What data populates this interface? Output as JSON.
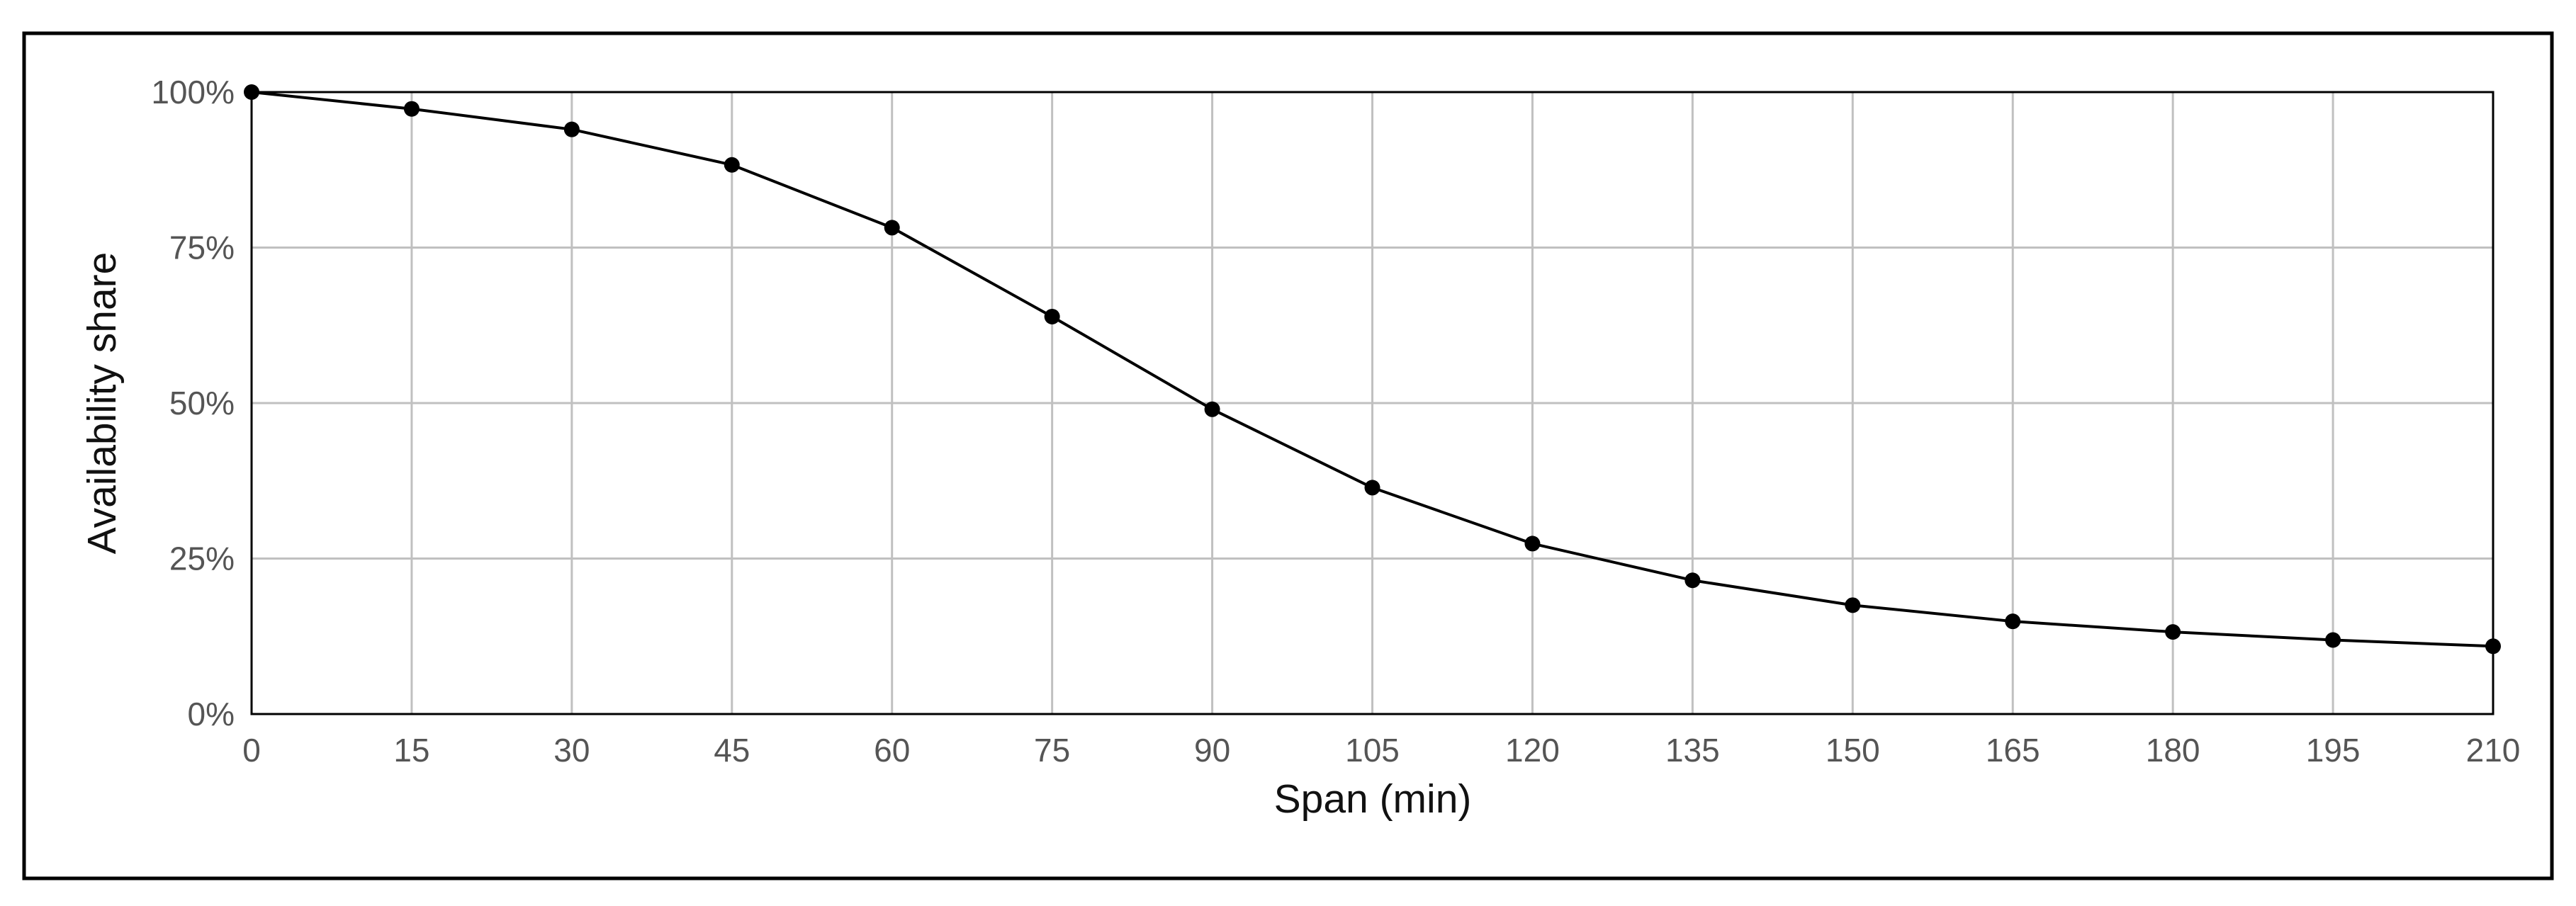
{
  "chart_data": {
    "type": "line",
    "title": "",
    "xlabel": "Span (min)",
    "ylabel": "Availability share",
    "x": [
      0,
      15,
      30,
      45,
      60,
      75,
      90,
      105,
      120,
      135,
      150,
      165,
      180,
      195,
      210
    ],
    "series": [
      {
        "values": [
          100,
          97.3,
          94.0,
          88.3,
          78.2,
          63.9,
          49.0,
          36.4,
          27.4,
          21.5,
          17.5,
          14.9,
          13.2,
          11.9,
          10.9
        ],
        "color": "#000000",
        "marker": "circle"
      }
    ],
    "xlim": [
      0,
      210
    ],
    "ylim": [
      0,
      100
    ],
    "xticks": [
      "0",
      "15",
      "30",
      "45",
      "60",
      "75",
      "90",
      "105",
      "120",
      "135",
      "150",
      "165",
      "180",
      "195",
      "210"
    ],
    "yticks": [
      "0%",
      "25%",
      "50%",
      "75%",
      "100%"
    ],
    "grid": true,
    "grid_color": "#c0c0c0",
    "legend": "none"
  }
}
